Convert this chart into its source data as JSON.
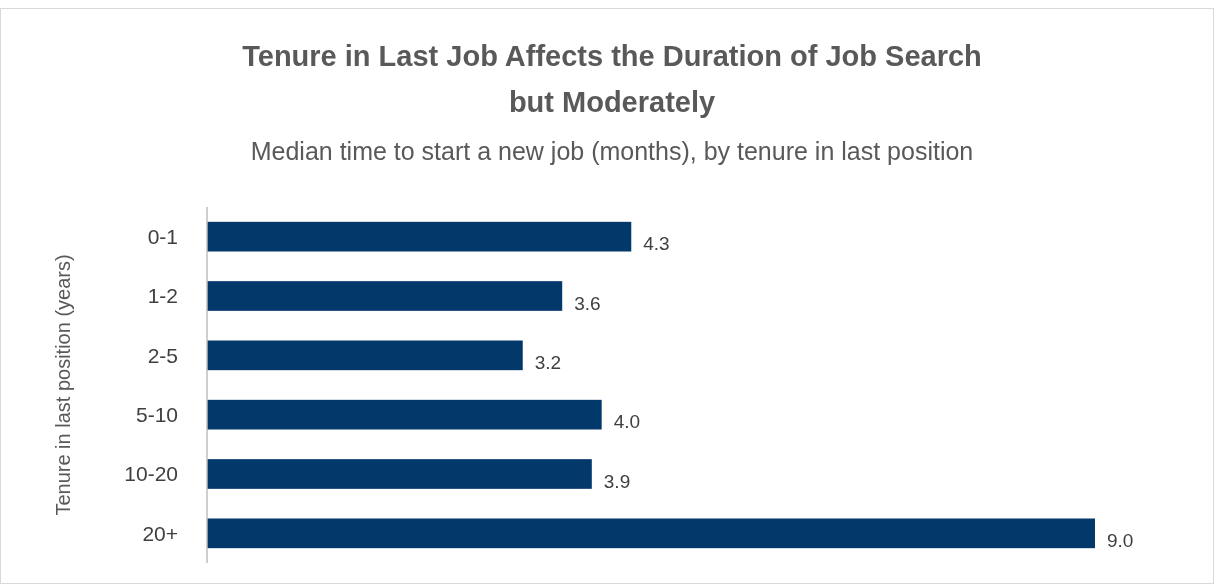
{
  "chart_data": {
    "type": "bar",
    "orientation": "horizontal",
    "title": "Tenure in Last Job Affects the Duration of Job Search but Moderately",
    "subtitle": "Median time to start a new job (months), by tenure in last position",
    "ylabel": "Tenure in last position (years)",
    "categories": [
      "0-1",
      "1-2",
      "2-5",
      "5-10",
      "10-20",
      "20+"
    ],
    "values": [
      4.3,
      3.6,
      3.2,
      4.0,
      3.9,
      9.0
    ],
    "value_labels": [
      "4.3",
      "3.6",
      "3.2",
      "4.0",
      "3.9",
      "9.0"
    ],
    "color": "#03386a"
  }
}
